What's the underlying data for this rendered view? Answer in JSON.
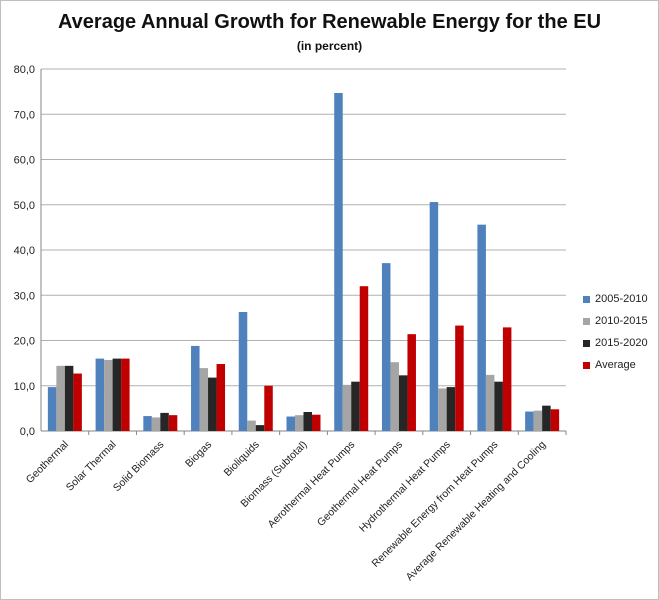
{
  "chart_data": {
    "type": "bar",
    "title": "Average Annual Growth for Renewable Energy for the EU",
    "subtitle": "(in percent)",
    "ylim": [
      0,
      80
    ],
    "yticks": [
      "0,0",
      "10,0",
      "20,0",
      "30,0",
      "40,0",
      "50,0",
      "60,0",
      "70,0",
      "80,0"
    ],
    "categories": [
      "Geothermal",
      "Solar Thermal",
      "Solid Biomass",
      "Biogas",
      "Bioliquids",
      "Biomass (Subtotal)",
      "Aerothermal Heat Pumps",
      "Geothermal Heat Pumps",
      "Hydrothermal Heat Pumps",
      "Renewable Energy from Heat Pumps",
      "Average Renewable Heating and Cooling"
    ],
    "series": [
      {
        "name": "2005-2010",
        "color": "#4f81bd",
        "values": [
          9.7,
          16.0,
          3.3,
          18.8,
          26.3,
          3.2,
          74.7,
          37.1,
          50.6,
          45.6,
          4.3
        ]
      },
      {
        "name": "2010-2015",
        "color": "#a5a5a5",
        "values": [
          14.4,
          15.7,
          3.0,
          13.9,
          2.3,
          3.5,
          10.2,
          15.2,
          9.4,
          12.4,
          4.5
        ]
      },
      {
        "name": "2015-2020",
        "color": "#262626",
        "values": [
          14.4,
          16.0,
          4.0,
          11.8,
          1.3,
          4.2,
          10.9,
          12.3,
          9.7,
          10.9,
          5.6
        ]
      },
      {
        "name": "Average",
        "color": "#c00000",
        "values": [
          12.7,
          16.0,
          3.5,
          14.8,
          10.0,
          3.6,
          32.0,
          21.4,
          23.3,
          22.9,
          4.8
        ]
      }
    ],
    "legend_position": "right",
    "grid": true
  }
}
